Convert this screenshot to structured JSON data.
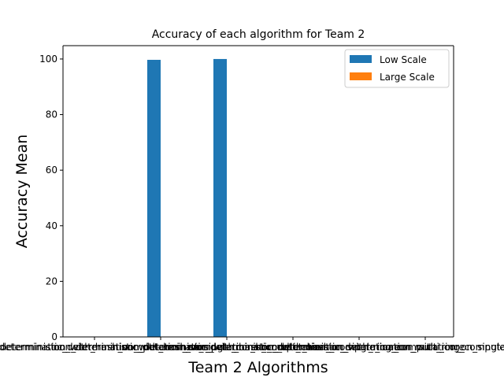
{
  "chart_data": {
    "type": "bar",
    "title": "Accuracy of each algorithm for Team 2",
    "xlabel": "Team 2 Algorithms",
    "ylabel": "Accuracy Mean",
    "ylim": [
      0,
      104.8
    ],
    "yticks": [
      0,
      20,
      40,
      60,
      80,
      100
    ],
    "ytick_labels": [
      "0",
      "20",
      "40",
      "60",
      "80",
      "100"
    ],
    "categories": [
      "deterministic_determination_with_hash_computation_on_single_core",
      "deterministic_determination_with_hash_computation_on_multi_core",
      "non_deterministic_determination_with_hash_computation_on_single_core",
      "non_deterministic_determination_with_hash_computation_on_multi_core",
      "non_deterministic_determination_with_ring_computation_on_single_core",
      "non_deterministic_determination_with_ring_computation_on_multi_core"
    ],
    "series": [
      {
        "name": "Low Scale",
        "color": "#1f77b4",
        "values": [
          0,
          99.7,
          100.0,
          0,
          0,
          0
        ]
      },
      {
        "name": "Large Scale",
        "color": "#ff7f0e",
        "values": [
          0,
          0,
          0,
          0,
          0,
          0
        ]
      }
    ],
    "legend_position": "top-right",
    "grid": false
  }
}
